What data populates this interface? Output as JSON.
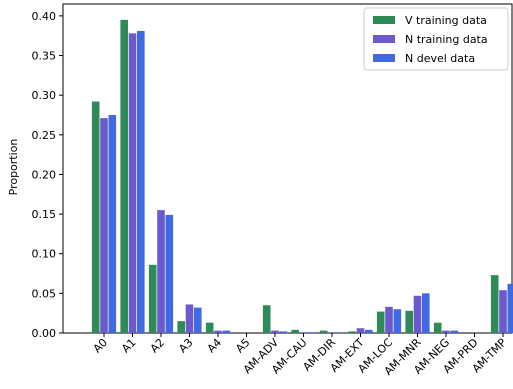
{
  "chart_data": {
    "type": "bar",
    "ylabel": "Proportion",
    "xlabel": "",
    "ylim": [
      0,
      0.415
    ],
    "yticks": [
      0.0,
      0.05,
      0.1,
      0.15,
      0.2,
      0.25,
      0.3,
      0.35,
      0.4
    ],
    "ytick_labels": [
      "0.00",
      "0.05",
      "0.10",
      "0.15",
      "0.20",
      "0.25",
      "0.30",
      "0.35",
      "0.40"
    ],
    "categories": [
      "A0",
      "A1",
      "A2",
      "A3",
      "A4",
      "A5",
      "AM-ADV",
      "AM-CAU",
      "AM-DIR",
      "AM-EXT",
      "AM-LOC",
      "AM-MNR",
      "AM-NEG",
      "AM-PRD",
      "AM-TMP"
    ],
    "legend_position": "top-right",
    "grid": false,
    "series": [
      {
        "name": "V training data",
        "color": "#2e8b57",
        "values": [
          0.292,
          0.395,
          0.086,
          0.015,
          0.013,
          0.0,
          0.035,
          0.004,
          0.003,
          0.002,
          0.027,
          0.028,
          0.013,
          0.0,
          0.073
        ]
      },
      {
        "name": "N training data",
        "color": "#6a5acd",
        "values": [
          0.271,
          0.378,
          0.155,
          0.036,
          0.003,
          0.0,
          0.003,
          0.001,
          0.001,
          0.006,
          0.033,
          0.047,
          0.003,
          0.0,
          0.054
        ]
      },
      {
        "name": "N devel data",
        "color": "#4169e1",
        "values": [
          0.275,
          0.381,
          0.149,
          0.032,
          0.003,
          0.0,
          0.002,
          0.001,
          0.001,
          0.004,
          0.03,
          0.05,
          0.003,
          0.0,
          0.062
        ]
      }
    ]
  }
}
